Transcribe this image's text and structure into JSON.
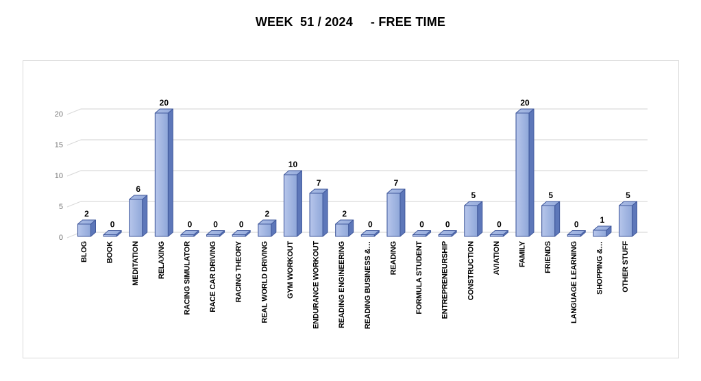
{
  "header": {
    "title": "WEEK  51 / 2024     - FREE TIME"
  },
  "chart_data": {
    "type": "bar",
    "style": "3d-column",
    "title": "WEEK  51 / 2024     - FREE TIME",
    "categories": [
      "BLOG",
      "BOOK",
      "MEDITATION",
      "RELAXING",
      "RACING SIMULATOR",
      "RACE CAR DRIVING",
      "RACING THEORY",
      "REAL WORLD DRIVING",
      "GYM WORKOUT",
      "ENDURANCE WORKOUT",
      "READING ENGINEERING",
      "READING BUSINESS &…",
      "READING",
      "FORMULA STUDENT",
      "ENTREPRENEURSHIP",
      "CONSTRUCTION",
      "AVIATION",
      "FAMILY",
      "FRIENDS",
      "LANGUAGE LEARNING",
      "SHOPPING &…",
      "OTHER STUFF"
    ],
    "values": [
      2,
      0,
      6,
      20,
      0,
      0,
      0,
      2,
      10,
      7,
      2,
      0,
      7,
      0,
      0,
      5,
      0,
      20,
      5,
      0,
      1,
      5
    ],
    "data_labels": true,
    "xlabel": "",
    "ylabel": "",
    "yticks": [
      0,
      5,
      10,
      15,
      20
    ],
    "ylim": [
      0,
      20
    ],
    "grid": true,
    "legend_position": "none",
    "colors": {
      "bar_front_light": "#b7c6eb",
      "bar_front_dark": "#8fa7d9",
      "bar_top": "#94aadc",
      "bar_top_light": "#aabce4",
      "bar_side": "#5d77b9",
      "bar_outline": "#41599c",
      "gridline": "#d9d9d9",
      "tick_label": "#737373",
      "value_label": "#000000",
      "frame_border": "#d9d9d9",
      "background": "#ffffff"
    }
  }
}
